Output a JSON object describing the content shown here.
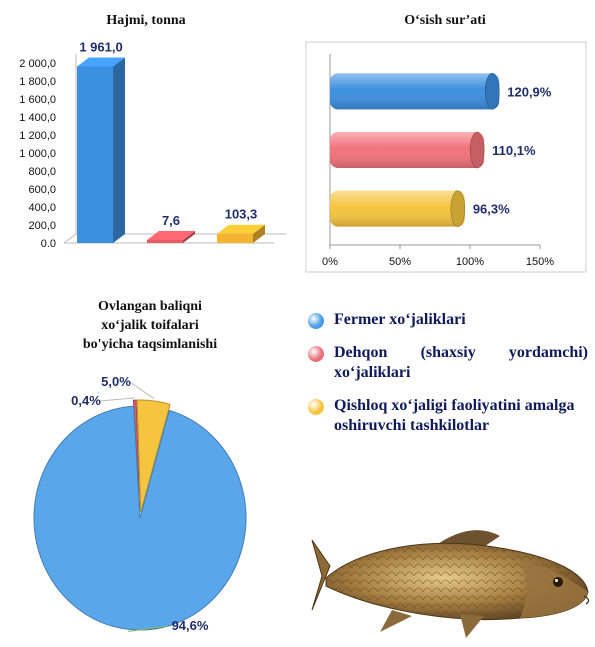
{
  "chart_data": [
    {
      "type": "bar",
      "title": "Hajmi, tonna",
      "categories": [
        "Fermer xo‘jaliklari",
        "Dehqon (shaxsiy yordamchi) xo‘jaliklari",
        "Qishloq xo‘jaligi faoliyatini amalga oshiruvchi tashkilotlar"
      ],
      "values": [
        1961.0,
        7.6,
        103.3
      ],
      "value_labels": [
        "1 961,0",
        "7,6",
        "103,3"
      ],
      "ylim": [
        0,
        2000
      ],
      "yticks": [
        "0.0",
        "200,0",
        "400,0",
        "600,0",
        "800,0",
        "1 000,0",
        "1 200,0",
        "1 400,0",
        "1 600,0",
        "1 800,0",
        "2 000,0"
      ],
      "colors": [
        "#3d8fe0",
        "#e35a63",
        "#f2b531"
      ]
    },
    {
      "type": "bar",
      "orientation": "horizontal",
      "title": "O‘sish sur’ati",
      "categories": [
        "Fermer xo‘jaliklari",
        "Dehqon (shaxsiy yordamchi) xo‘jaliklari",
        "Qishloq xo‘jaligi faoliyatini amalga oshiruvchi tashkilotlar"
      ],
      "values": [
        120.9,
        110.1,
        96.3
      ],
      "value_labels": [
        "120,9%",
        "110,1%",
        "96,3%"
      ],
      "xlim": [
        0,
        150
      ],
      "xticks": [
        "0%",
        "50%",
        "100%",
        "150%"
      ],
      "colors": [
        "#3d8fe0",
        "#f2737b",
        "#f5c540"
      ]
    },
    {
      "type": "pie",
      "title_lines": [
        "Ovlangan baliqni",
        "xo‘jalik toifalari",
        "bo'yicha taqsimlanishi"
      ],
      "categories": [
        "Fermer xo‘jaliklari",
        "Dehqon (shaxsiy yordamchi) xo‘jaliklari",
        "Qishloq xo‘jaligi faoliyatini amalga oshiruvchi tashkilotlar"
      ],
      "values": [
        94.6,
        0.4,
        5.0
      ],
      "value_labels": [
        "94,6%",
        "0,4%",
        "5,0%"
      ],
      "colors": [
        "#5aa6ea",
        "#e35a63",
        "#f5c540"
      ]
    }
  ],
  "legend": [
    {
      "label": "Fermer xo‘jaliklari",
      "color": "#4a9be6"
    },
    {
      "label": "Dehqon (shaxsiy yordamchi) xo‘jaliklari",
      "color": "#e8707a"
    },
    {
      "label": "Qishloq xo‘jaligi faoliyatini amalga oshiruvchi tashkilotlar",
      "color": "#f5c540"
    }
  ],
  "illustration": "carp-fish-image"
}
